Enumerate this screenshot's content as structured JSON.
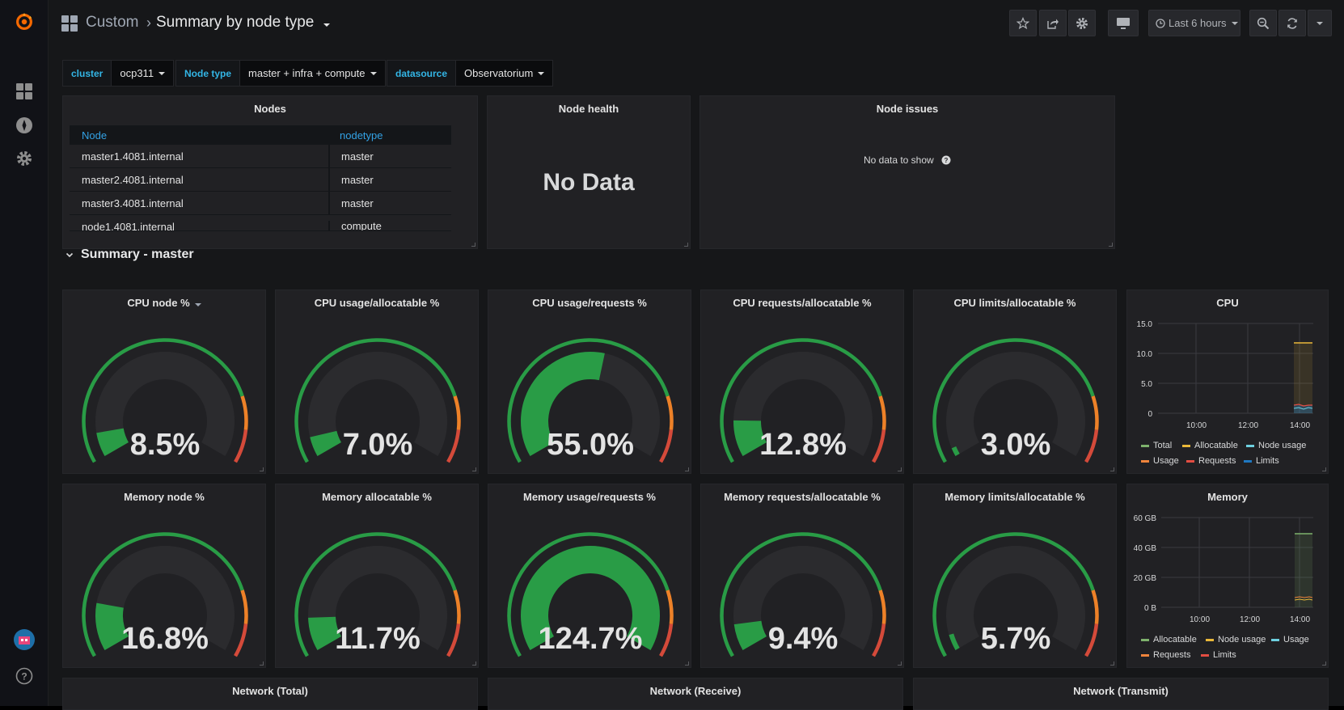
{
  "header": {
    "folder": "Custom",
    "dashboard_title": "Summary by node type",
    "time_range_label": "Last 6 hours"
  },
  "variables": [
    {
      "label": "cluster",
      "value": "ocp311"
    },
    {
      "label": "Node type",
      "value": "master + infra + compute"
    },
    {
      "label": "datasource",
      "value": "Observatorium"
    }
  ],
  "nodes_panel": {
    "title": "Nodes",
    "columns": [
      "Node",
      "nodetype"
    ],
    "rows": [
      [
        "master1.4081.internal",
        "master"
      ],
      [
        "master2.4081.internal",
        "master"
      ],
      [
        "master3.4081.internal",
        "master"
      ],
      [
        "node1.4081.internal",
        "compute"
      ]
    ]
  },
  "node_health": {
    "title": "Node health",
    "value": "No Data"
  },
  "node_issues": {
    "title": "Node issues",
    "message": "No data to show"
  },
  "section": {
    "title": "Summary - master"
  },
  "gauges": [
    {
      "title": "CPU node %",
      "value_text": "8.5%",
      "value": 8.5,
      "max": 100,
      "has_menu": true
    },
    {
      "title": "CPU usage/allocatable %",
      "value_text": "7.0%",
      "value": 7.0,
      "max": 100
    },
    {
      "title": "CPU usage/requests %",
      "value_text": "55.0%",
      "value": 55.0,
      "max": 100
    },
    {
      "title": "CPU requests/allocatable %",
      "value_text": "12.8%",
      "value": 12.8,
      "max": 100
    },
    {
      "title": "CPU limits/allocatable %",
      "value_text": "3.0%",
      "value": 3.0,
      "max": 100
    },
    {
      "title": "Memory node %",
      "value_text": "16.8%",
      "value": 16.8,
      "max": 100
    },
    {
      "title": "Memory allocatable %",
      "value_text": "11.7%",
      "value": 11.7,
      "max": 100
    },
    {
      "title": "Memory usage/requests %",
      "value_text": "124.7%",
      "value": 124.7,
      "max": 100
    },
    {
      "title": "Memory requests/allocatable %",
      "value_text": "9.4%",
      "value": 9.4,
      "max": 100
    },
    {
      "title": "Memory limits/allocatable %",
      "value_text": "5.7%",
      "value": 5.7,
      "max": 100
    }
  ],
  "cpu_graph": {
    "title": "CPU",
    "y_ticks": [
      "15.0",
      "10.0",
      "5.0",
      "0"
    ],
    "x_ticks": [
      "10:00",
      "12:00",
      "14:00"
    ],
    "legend": [
      {
        "name": "Total",
        "color": "#7eb26d"
      },
      {
        "name": "Allocatable",
        "color": "#eab839"
      },
      {
        "name": "Node usage",
        "color": "#6ed0e0"
      },
      {
        "name": "Usage",
        "color": "#ef843c"
      },
      {
        "name": "Requests",
        "color": "#e24d42"
      },
      {
        "name": "Limits",
        "color": "#1f78c1"
      }
    ]
  },
  "memory_graph": {
    "title": "Memory",
    "y_ticks": [
      "60 GB",
      "40 GB",
      "20 GB",
      "0 B"
    ],
    "x_ticks": [
      "10:00",
      "12:00",
      "14:00"
    ],
    "legend": [
      {
        "name": "Allocatable",
        "color": "#7eb26d"
      },
      {
        "name": "Node usage",
        "color": "#eab839"
      },
      {
        "name": "Usage",
        "color": "#6ed0e0"
      },
      {
        "name": "Requests",
        "color": "#ef843c"
      },
      {
        "name": "Limits",
        "color": "#e24d42"
      }
    ]
  },
  "network_panels": [
    "Network (Total)",
    "Network (Receive)",
    "Network (Transmit)"
  ],
  "colors": {
    "green": "#299c46",
    "orange": "#ed8128",
    "red": "#d44a3a",
    "accent": "#33b5e5"
  }
}
